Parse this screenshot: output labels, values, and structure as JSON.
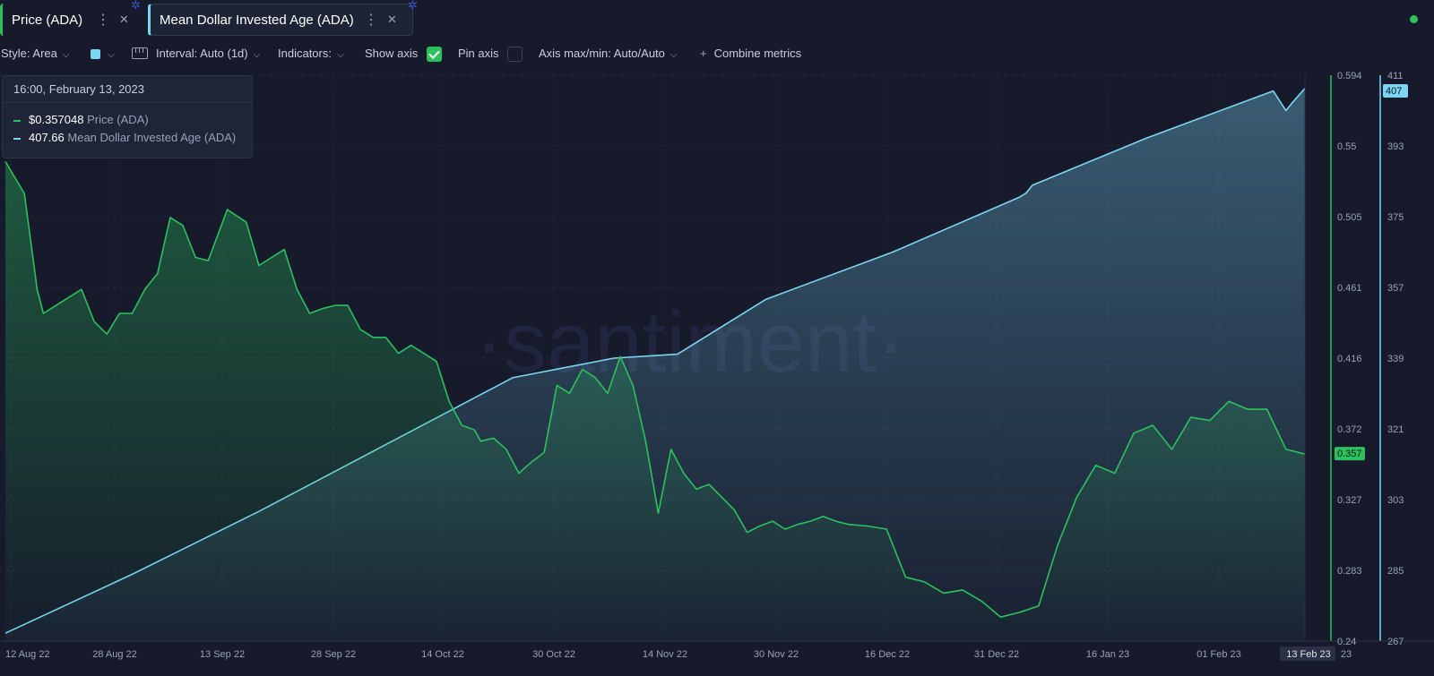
{
  "tabs": [
    {
      "label": "Price (ADA)",
      "color": "#2bc15d"
    },
    {
      "label": "Mean Dollar Invested Age (ADA)",
      "color": "#7ad6f4"
    }
  ],
  "toolbar": {
    "style": "Style: Area",
    "interval": "Interval: Auto (1d)",
    "indicators": "Indicators:",
    "show_axis": "Show axis",
    "show_axis_checked": true,
    "pin_axis": "Pin axis",
    "pin_axis_checked": false,
    "axis_maxmin": "Axis max/min: Auto/Auto",
    "combine": "Combine metrics"
  },
  "tooltip": {
    "date": "16:00, February 13, 2023",
    "rows": [
      {
        "value": "$0.357048",
        "name": "Price (ADA)",
        "color": "#2bc15d"
      },
      {
        "value": "407.66",
        "name": "Mean Dollar Invested Age (ADA)",
        "color": "#7ad6f4"
      }
    ]
  },
  "watermark": "·santiment·",
  "chart_data": {
    "type": "area",
    "x_tick_labels": [
      "12 Aug 22",
      "28 Aug 22",
      "13 Sep 22",
      "28 Sep 22",
      "14 Oct 22",
      "30 Oct 22",
      "14 Nov 22",
      "30 Nov 22",
      "16 Dec 22",
      "31 Dec 22",
      "16 Jan 23",
      "01 Feb 23",
      "13 Feb 23",
      "23"
    ],
    "grid": true,
    "series": [
      {
        "name": "Price (ADA)",
        "color": "#2bc15d",
        "axis": "left-of-right",
        "ylim": [
          0.24,
          0.594
        ],
        "y_ticks": [
          "0.594",
          "0.55",
          "0.505",
          "0.461",
          "0.416",
          "0.372",
          "0.327",
          "0.283",
          "0.24"
        ],
        "current_label": "0.357",
        "x_days": [
          0,
          3,
          5,
          6,
          8,
          10,
          12,
          14,
          16,
          18,
          20,
          22,
          24,
          26,
          28,
          30,
          32,
          35,
          38,
          40,
          42,
          44,
          46,
          48,
          50,
          52,
          54,
          56,
          58,
          60,
          62,
          64,
          66,
          68,
          70,
          72,
          74,
          75,
          77,
          79,
          81,
          83,
          85,
          87,
          89,
          91,
          93,
          95,
          97,
          99,
          101,
          103,
          105,
          107,
          109,
          111,
          113,
          115,
          117,
          119,
          121,
          123,
          125,
          127,
          129,
          131,
          133,
          136,
          139,
          142,
          145,
          148,
          151,
          154,
          157,
          160,
          163,
          166,
          169,
          172,
          175,
          178,
          181,
          184,
          187,
          190,
          193,
          196,
          199,
          202,
          205
        ],
        "values": [
          0.54,
          0.52,
          0.46,
          0.445,
          0.45,
          0.455,
          0.46,
          0.44,
          0.432,
          0.445,
          0.445,
          0.46,
          0.47,
          0.505,
          0.5,
          0.48,
          0.478,
          0.51,
          0.502,
          0.475,
          0.48,
          0.485,
          0.46,
          0.445,
          0.448,
          0.45,
          0.45,
          0.435,
          0.43,
          0.43,
          0.42,
          0.425,
          0.42,
          0.415,
          0.39,
          0.375,
          0.372,
          0.365,
          0.367,
          0.36,
          0.345,
          0.352,
          0.358,
          0.4,
          0.395,
          0.41,
          0.405,
          0.395,
          0.418,
          0.4,
          0.365,
          0.32,
          0.36,
          0.345,
          0.335,
          0.338,
          0.33,
          0.322,
          0.308,
          0.312,
          0.315,
          0.31,
          0.313,
          0.315,
          0.318,
          0.315,
          0.313,
          0.312,
          0.31,
          0.28,
          0.277,
          0.27,
          0.272,
          0.265,
          0.255,
          0.258,
          0.262,
          0.3,
          0.33,
          0.35,
          0.345,
          0.37,
          0.375,
          0.36,
          0.38,
          0.378,
          0.39,
          0.385,
          0.385,
          0.36,
          0.357
        ]
      },
      {
        "name": "Mean Dollar Invested Age (ADA)",
        "color": "#7ad6f4",
        "axis": "right",
        "ylim": [
          267,
          411
        ],
        "y_ticks": [
          "411",
          "393",
          "375",
          "357",
          "339",
          "321",
          "303",
          "285",
          "267"
        ],
        "current_label": "407",
        "x_days": [
          0,
          20,
          40,
          60,
          80,
          96,
          106,
          120,
          140,
          160,
          161,
          162,
          180,
          200,
          202,
          203,
          205
        ],
        "values": [
          269,
          284,
          300,
          317,
          334,
          339,
          340,
          354,
          366,
          380,
          381,
          383,
          395,
          407,
          402,
          404,
          407.66
        ]
      }
    ]
  }
}
